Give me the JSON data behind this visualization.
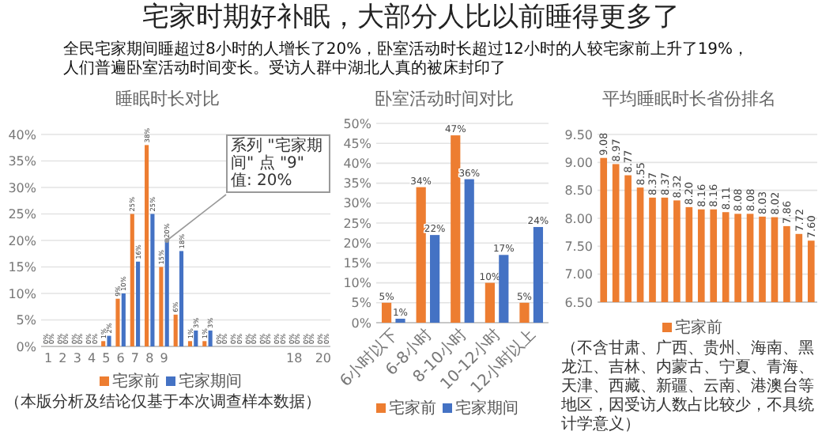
{
  "chart_data": [
    {
      "type": "other",
      "title": "宅家时期好补眠，大部分人比以前睡得更多了",
      "subtitle": "全民宅家期间睡超过8小时的人增长了20%，卧室活动时长超过12小时的人较宅家前上升了19%，人们普遍卧室活动时间变长。受访人群中湖北人真的被床封印了"
    },
    {
      "type": "bar",
      "title": "睡眠时长对比",
      "categories": [
        "1",
        "2",
        "3",
        "4",
        "5",
        "6",
        "7",
        "8",
        "9",
        null,
        null,
        null,
        null,
        null,
        null,
        null,
        null,
        "18",
        null,
        "20"
      ],
      "series": [
        {
          "name": "宅家前",
          "color": "#ed7d31",
          "values": [
            0,
            0,
            0,
            0,
            1,
            9,
            25,
            38,
            15,
            6,
            1,
            1,
            0,
            0,
            0,
            0,
            0,
            0,
            0,
            0
          ],
          "value_labels": [
            "0%",
            "0%",
            "0%",
            "0%",
            "1%",
            "9%",
            "25%",
            "38%",
            "15%",
            "6%",
            "1%",
            "1%",
            "0%",
            "0%",
            "0%",
            "0%",
            "0%",
            "0%",
            "0%",
            "0%"
          ]
        },
        {
          "name": "宅家期间",
          "color": "#4472c4",
          "values": [
            0,
            0,
            0,
            0,
            2,
            10,
            16,
            25,
            20,
            18,
            3,
            3,
            0,
            0,
            0,
            0,
            0,
            0,
            0,
            0
          ],
          "value_labels": [
            "0%",
            "0%",
            "0%",
            "0%",
            "2%",
            "10%",
            "16%",
            "25%",
            "20%",
            "18%",
            "3%",
            "3%",
            "0%",
            "0%",
            "0%",
            "0%",
            "0%",
            "0%",
            "0%",
            "0%"
          ]
        }
      ],
      "ylim": [
        0,
        40
      ],
      "yticks": [
        {
          "value": 0,
          "label": "0%"
        },
        {
          "value": 5,
          "label": "5%"
        },
        {
          "value": 10,
          "label": "10%"
        },
        {
          "value": 15,
          "label": "15%"
        },
        {
          "value": 20,
          "label": "20%"
        },
        {
          "value": 25,
          "label": "25%"
        },
        {
          "value": 30,
          "label": "30%"
        },
        {
          "value": 35,
          "label": "35%"
        },
        {
          "value": 40,
          "label": "40%"
        }
      ],
      "grid": "y",
      "legend": "bottom",
      "annotations": [
        {
          "text": "系列 \"宅家期间\" 点 \"9\" 值: 20%",
          "x": "9",
          "y": 20
        },
        "（本版分析及结论仅基于本次调查样本数据）"
      ]
    },
    {
      "type": "bar",
      "title": "卧室活动时间对比",
      "categories": [
        "6小时以下",
        "6-8小时",
        "8-10小时",
        "10-12小时",
        "12小时以上"
      ],
      "series": [
        {
          "name": "宅家前",
          "color": "#ed7d31",
          "values": [
            5,
            34,
            47,
            10,
            5
          ],
          "value_labels": [
            "5%",
            "34%",
            "47%",
            "10%",
            "5%"
          ]
        },
        {
          "name": "宅家期间",
          "color": "#4472c4",
          "values": [
            1,
            22,
            36,
            17,
            24
          ],
          "value_labels": [
            "1%",
            "22%",
            "36%",
            "17%",
            "24%"
          ]
        }
      ],
      "ylim": [
        0,
        50
      ],
      "yticks": [
        {
          "value": 0,
          "label": "0%"
        },
        {
          "value": 5,
          "label": "5%"
        },
        {
          "value": 10,
          "label": "10%"
        },
        {
          "value": 15,
          "label": "15%"
        },
        {
          "value": 20,
          "label": "20%"
        },
        {
          "value": 25,
          "label": "25%"
        },
        {
          "value": 30,
          "label": "30%"
        },
        {
          "value": 35,
          "label": "35%"
        },
        {
          "value": 40,
          "label": "40%"
        },
        {
          "value": 45,
          "label": "45%"
        },
        {
          "value": 50,
          "label": "50%"
        }
      ],
      "grid": "y",
      "legend": "bottom"
    },
    {
      "type": "bar",
      "title": "平均睡眠时长省份排名",
      "categories": [
        null,
        null,
        null,
        null,
        null,
        null,
        null,
        null,
        null,
        null,
        null,
        null,
        null,
        null,
        null,
        null,
        null,
        null
      ],
      "series": [
        {
          "name": "宅家前",
          "color": "#ed7d31",
          "values": [
            9.08,
            8.97,
            8.77,
            8.55,
            8.37,
            8.37,
            8.32,
            8.2,
            8.16,
            8.16,
            8.11,
            8.08,
            8.08,
            8.03,
            8.02,
            7.86,
            7.72,
            7.6
          ],
          "value_labels": [
            "9.08",
            "8.97",
            "8.77",
            "8.55",
            "8.37",
            "8.37",
            "8.32",
            "8.20",
            "8.16",
            "8.16",
            "8.11",
            "8.08",
            "8.08",
            "8.03",
            "8.02",
            "7.86",
            "7.72",
            "7.60"
          ]
        }
      ],
      "ylim": [
        6.5,
        9.5
      ],
      "yticks": [
        {
          "value": 6.5,
          "label": "6.50"
        },
        {
          "value": 7,
          "label": "7.00"
        },
        {
          "value": 7.5,
          "label": "7.50"
        },
        {
          "value": 8,
          "label": "8.00"
        },
        {
          "value": 8.5,
          "label": "8.50"
        },
        {
          "value": 9,
          "label": "9.00"
        },
        {
          "value": 9.5,
          "label": "9.50"
        }
      ],
      "grid": "y",
      "legend": "bottom",
      "annotations": [
        "（不含甘肃、广西、贵州、海南、黑龙江、吉林、内蒙古、宁夏、青海、天津、西藏、新疆、云南、港澳台等地区，因受访人数占比较少，不具统计学意义）"
      ]
    }
  ]
}
